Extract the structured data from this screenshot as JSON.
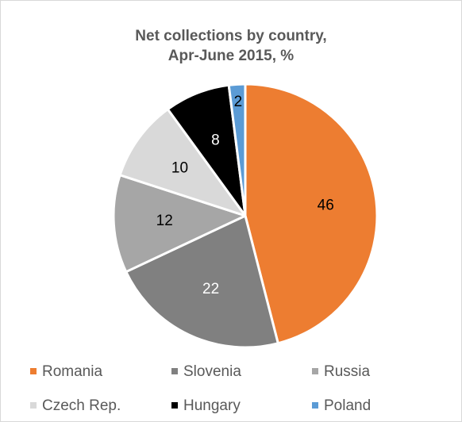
{
  "chart_data": {
    "type": "pie",
    "title_lines": [
      "Net collections by country,",
      "Apr-June 2015, %"
    ],
    "categories": [
      "Romania",
      "Slovenia",
      "Russia",
      "Czech Rep.",
      "Hungary",
      "Poland"
    ],
    "values": [
      46,
      22,
      12,
      10,
      8,
      2
    ],
    "data_labels": [
      "46",
      "22",
      "12",
      "10",
      "8",
      "2"
    ],
    "colors": [
      "#ed7d31",
      "#808080",
      "#a6a6a6",
      "#d9d9d9",
      "#000000",
      "#5b9bd5"
    ],
    "label_colors": [
      "#000000",
      "#ffffff",
      "#000000",
      "#000000",
      "#ffffff",
      "#000000"
    ],
    "legend_position": "bottom",
    "start": "12 o'clock",
    "direction": "clockwise"
  }
}
